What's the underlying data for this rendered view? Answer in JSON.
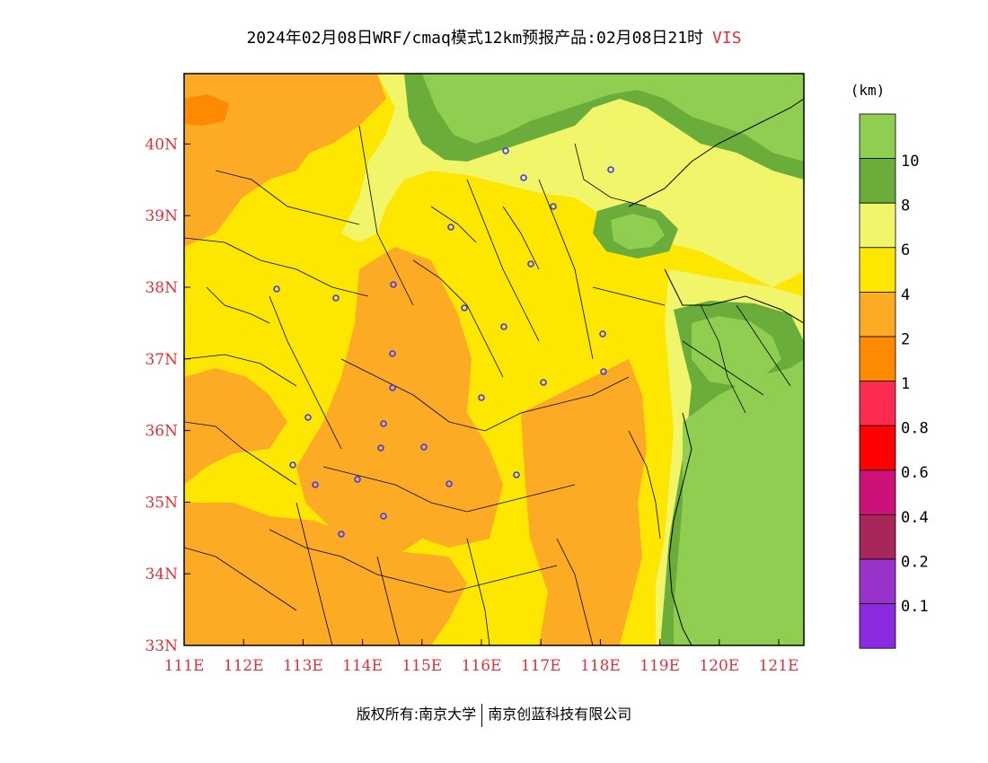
{
  "title": {
    "main": "2024年02月08日WRF/cmaq模式12km预报产品:02月08日21时",
    "variable": "VIS"
  },
  "map": {
    "lon_ticks": [
      "111E",
      "112E",
      "113E",
      "114E",
      "115E",
      "116E",
      "117E",
      "118E",
      "119E",
      "120E",
      "121E"
    ],
    "lat_ticks": [
      "33N",
      "34N",
      "35N",
      "36N",
      "37N",
      "38N",
      "39N",
      "40N"
    ],
    "tick_color": "#e0313a",
    "palette": {
      "green_10": "#8fce50",
      "green_8": "#6aad3a",
      "yellow_6": "#f0f56a",
      "yellow_4": "#fde600",
      "orange_2": "#fdaa25",
      "orange_1": "#fd8a00",
      "county_line": "#000000",
      "station_marker": "#3a3aff"
    }
  },
  "colorbar": {
    "unit": "(km)",
    "labels": [
      "10",
      "8",
      "6",
      "4",
      "2",
      "1",
      "0.8",
      "0.6",
      "0.4",
      "0.2",
      "0.1"
    ],
    "colors": [
      "#8fce50",
      "#6aad3a",
      "#f0f56a",
      "#fde600",
      "#fdaa25",
      "#fd8a00",
      "#ff2a50",
      "#ff0000",
      "#cc1179",
      "#a7275a",
      "#9933cc",
      "#8a2be2"
    ]
  },
  "footer": {
    "left": "版权所有:南京大学",
    "right": "南京创蓝科技有限公司"
  }
}
